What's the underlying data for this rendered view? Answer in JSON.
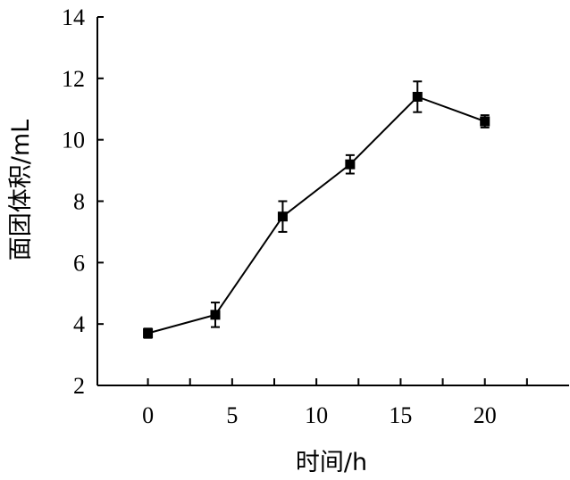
{
  "chart_data": {
    "type": "line",
    "title": "",
    "xlabel": "时间/h",
    "ylabel": "面团体积/mL",
    "xlim": [
      -3,
      25
    ],
    "ylim": [
      2,
      14
    ],
    "xticks": [
      0,
      5,
      10,
      15,
      20
    ],
    "yticks": [
      2,
      4,
      6,
      8,
      10,
      12,
      14
    ],
    "x_minor_ticks": [
      2.5,
      7.5,
      12.5,
      17.5,
      22.5
    ],
    "grid": false,
    "legend": "none",
    "series": [
      {
        "x": [
          0,
          4,
          8,
          12,
          16,
          20
        ],
        "values": [
          3.7,
          4.3,
          7.5,
          9.2,
          11.4,
          10.6
        ],
        "error": [
          0.15,
          0.4,
          0.5,
          0.3,
          0.5,
          0.2
        ],
        "marker": "square",
        "color": "#000000"
      }
    ]
  }
}
